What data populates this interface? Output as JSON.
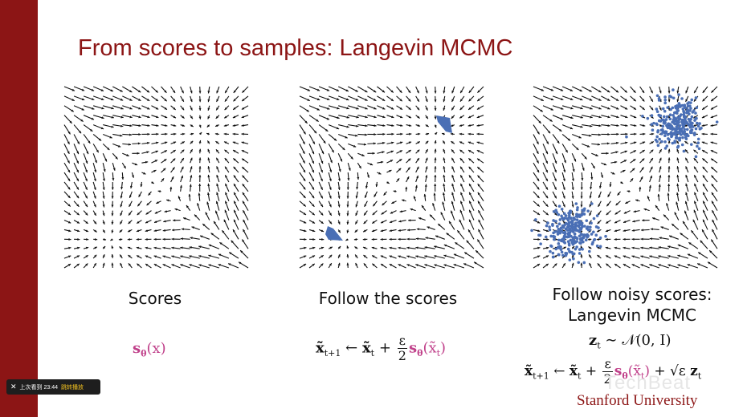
{
  "slide": {
    "title": "From scores to samples: Langevin MCMC",
    "footer": "Stanford University",
    "watermark": "TechBeat"
  },
  "panels": [
    {
      "caption": "Scores",
      "formula_fn": "s",
      "formula_sub": "θ",
      "formula_arg": "(x)"
    },
    {
      "caption": "Follow the scores"
    },
    {
      "caption_line1": "Follow noisy scores:",
      "caption_line2": "Langevin MCMC"
    }
  ],
  "formulas": {
    "update": {
      "lhs": "x̃",
      "lhs_sub": "t+1",
      "arrow": "←",
      "xt": "x̃",
      "xt_sub": "t",
      "plus": "+",
      "eps": "ε",
      "two": "2",
      "s": "s",
      "theta": "θ",
      "arg": "(x̃",
      "arg_sub": "t",
      "close": ")"
    },
    "noise": {
      "z": "z",
      "z_sub": "t",
      "sim": "∼",
      "dist": "𝒩(0, I)"
    },
    "langevin_tail": {
      "plus": "+",
      "sqrt": "√ε",
      "z": "z",
      "z_sub": "t"
    }
  },
  "player": {
    "close_icon": "close-icon",
    "last_watched": "上次看到 23:44",
    "resume": "跳转播放"
  },
  "colors": {
    "accent": "#8c1515",
    "formula_pink": "#c0408a",
    "sample_blue": "#4a6fb5",
    "arrow": "#111111"
  }
}
